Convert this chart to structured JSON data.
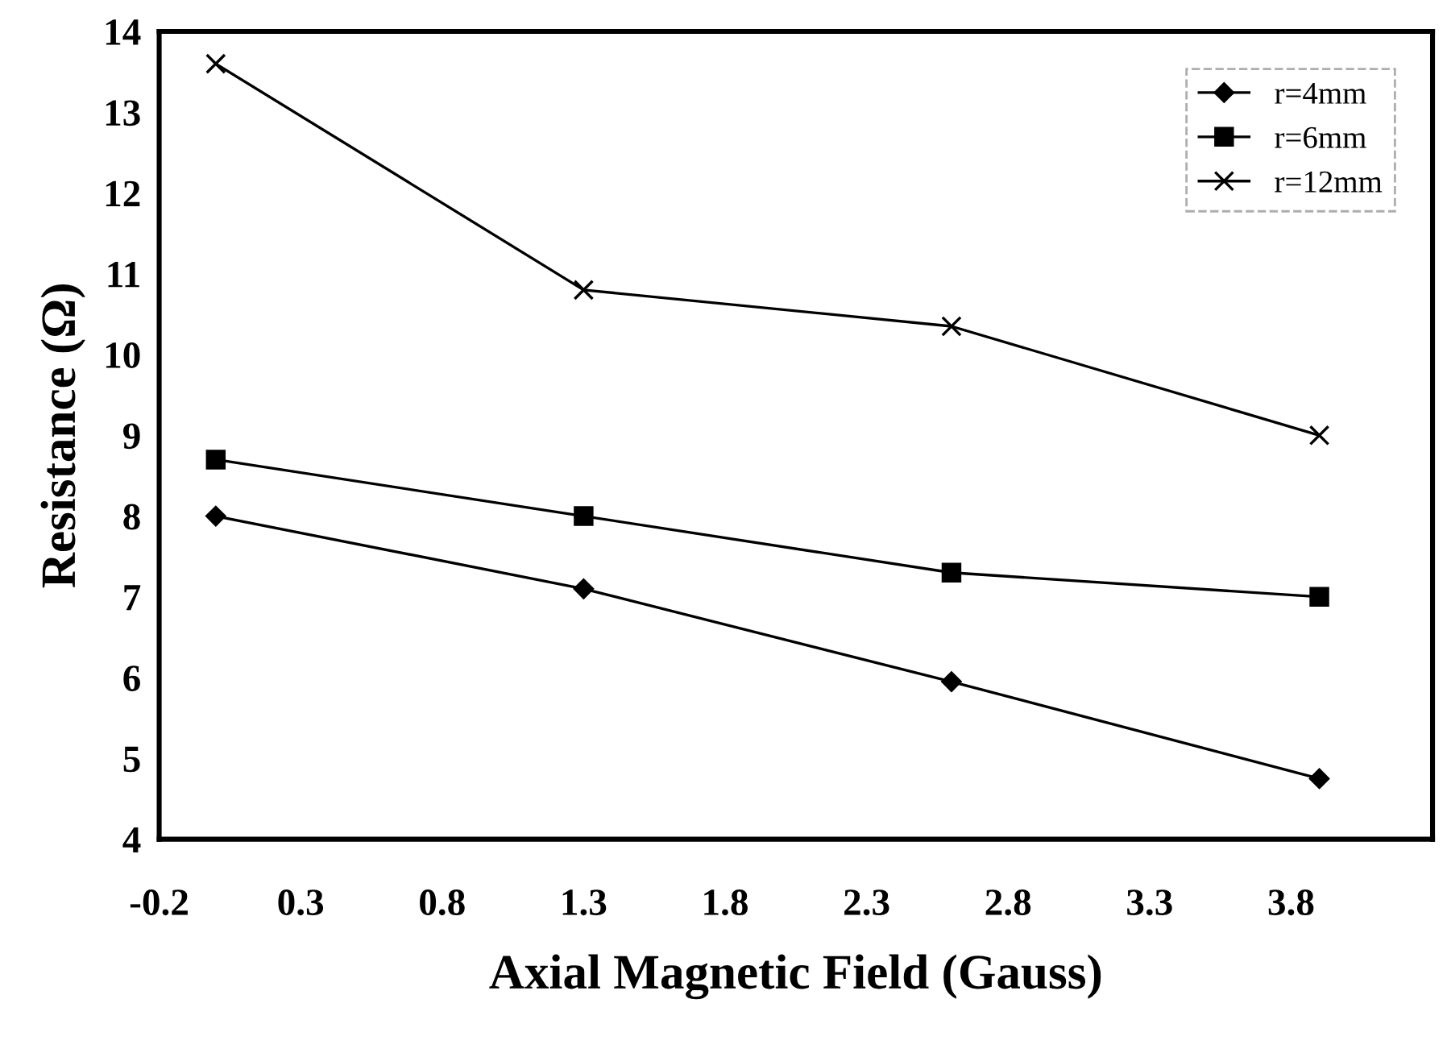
{
  "chart_data": {
    "type": "line",
    "xlabel": "Axial Magnetic Field (Gauss)",
    "ylabel": "Resistance (Ω)",
    "x": [
      0,
      1.3,
      2.6,
      3.9
    ],
    "series": [
      {
        "name": "r=4mm",
        "color": "#000000",
        "marker": "diamond",
        "values": [
          8.0,
          7.1,
          5.95,
          4.75
        ]
      },
      {
        "name": "r=6mm",
        "color": "#000000",
        "marker": "square",
        "values": [
          8.7,
          8.0,
          7.3,
          7.0
        ]
      },
      {
        "name": "r=12mm",
        "color": "#000000",
        "marker": "cross",
        "values": [
          13.6,
          10.8,
          10.35,
          9.0
        ]
      }
    ],
    "xlim": [
      -0.2,
      4.3
    ],
    "xticks": [
      -0.2,
      0.3,
      0.8,
      1.3,
      1.8,
      2.3,
      2.8,
      3.3,
      3.8
    ],
    "ylim": [
      4,
      14
    ],
    "yticks": [
      4,
      5,
      6,
      7,
      8,
      9,
      10,
      11,
      12,
      13,
      14
    ],
    "grid": false,
    "legend": "top right",
    "line_style": "solid"
  }
}
